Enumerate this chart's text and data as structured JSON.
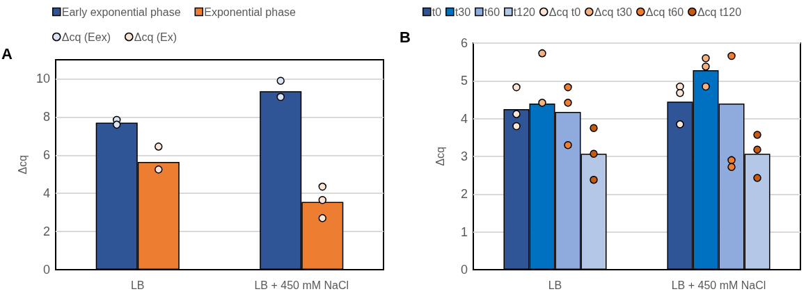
{
  "chart_data": [
    {
      "type": "bar",
      "annotations": [
        "A"
      ],
      "ylabel": "Δcq",
      "categories": [
        "LB",
        "LB + 450 mM NaCl"
      ],
      "ylim": [
        0,
        11
      ],
      "yticks": [
        0,
        2,
        4,
        6,
        8,
        10
      ],
      "grid": "y",
      "legend": "top",
      "marker": "circle",
      "series": [
        {
          "name": "Early exponential phase",
          "color": "#2f5597",
          "values": [
            7.7,
            9.35
          ]
        },
        {
          "name": "Exponential phase",
          "color": "#ed7d31",
          "values": [
            5.65,
            3.55
          ]
        },
        {
          "type": "scatter",
          "name": "Δcq (Eex)",
          "color": "#dae3f3",
          "x": [
            "LB",
            "LB",
            "LB + 450 mM NaCl",
            "LB + 450 mM NaCl"
          ],
          "values": [
            7.85,
            7.6,
            9.9,
            9.05
          ]
        },
        {
          "type": "scatter",
          "name": "Δcq (Ex)",
          "color": "#fbe5d6",
          "x": [
            "LB",
            "LB",
            "LB + 450 mM NaCl",
            "LB + 450 mM NaCl",
            "LB + 450 mM NaCl"
          ],
          "values": [
            6.45,
            5.25,
            4.35,
            3.65,
            2.7
          ]
        }
      ]
    },
    {
      "type": "bar",
      "annotations": [
        "B"
      ],
      "ylabel": "Δcq",
      "categories": [
        "LB",
        "LB + 450 mM NaCl"
      ],
      "ylim": [
        0,
        6
      ],
      "yticks": [
        0,
        1,
        2,
        3,
        4,
        5,
        6
      ],
      "grid": "y",
      "legend": "top",
      "marker": "circle",
      "series": [
        {
          "name": "t0",
          "color": "#2f5597",
          "values": [
            4.25,
            4.45
          ]
        },
        {
          "name": "t30",
          "color": "#0070c0",
          "values": [
            4.4,
            5.28
          ]
        },
        {
          "name": "t60",
          "color": "#8faadc",
          "values": [
            4.18,
            4.4
          ]
        },
        {
          "name": "t120",
          "color": "#b4c7e7",
          "values": [
            3.07,
            3.07
          ]
        },
        {
          "type": "scatter",
          "name": "Δcq t0",
          "color": "#fbe5d6",
          "x": [
            "LB",
            "LB",
            "LB",
            "LB + 450 mM NaCl",
            "LB + 450 mM NaCl",
            "LB + 450 mM NaCl"
          ],
          "values": [
            4.83,
            4.12,
            3.8,
            4.85,
            4.68,
            3.85
          ]
        },
        {
          "type": "scatter",
          "name": "Δcq t30",
          "color": "#f4b183",
          "x": [
            "LB",
            "LB",
            "LB + 450 mM NaCl",
            "LB + 450 mM NaCl",
            "LB + 450 mM NaCl"
          ],
          "values": [
            5.73,
            4.42,
            5.6,
            5.38,
            4.85
          ]
        },
        {
          "type": "scatter",
          "name": "Δcq t60",
          "color": "#ed7d31",
          "x": [
            "LB",
            "LB",
            "LB",
            "LB + 450 mM NaCl",
            "LB + 450 mM NaCl",
            "LB + 450 mM NaCl"
          ],
          "values": [
            4.83,
            4.42,
            3.3,
            5.66,
            2.9,
            2.72
          ]
        },
        {
          "type": "scatter",
          "name": "Δcq t120",
          "color": "#c55a11",
          "x": [
            "LB",
            "LB",
            "LB",
            "LB + 450 mM NaCl",
            "LB + 450 mM NaCl",
            "LB + 450 mM NaCl"
          ],
          "values": [
            3.75,
            3.07,
            2.38,
            3.57,
            3.18,
            2.43
          ]
        }
      ]
    }
  ]
}
